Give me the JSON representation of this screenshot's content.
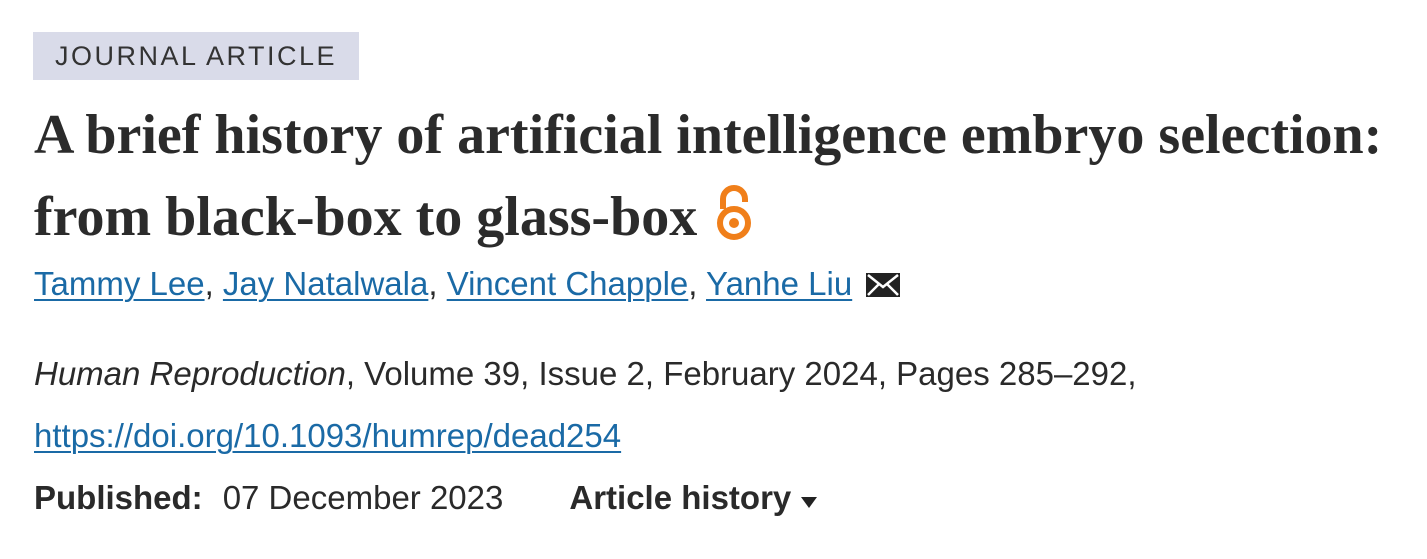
{
  "article_type": "JOURNAL ARTICLE",
  "title": "A brief history of artificial intelligence embryo selection: from black-box to glass-box",
  "authors": [
    "Tammy Lee",
    "Jay Natalwala",
    "Vincent Chapple",
    "Yanhe Liu"
  ],
  "author_separator": ",",
  "citation": {
    "journal": "Human Reproduction",
    "details": ", Volume 39, Issue 2, February 2024, Pages 285–292,",
    "doi": "https://doi.org/10.1093/humrep/dead254"
  },
  "published": {
    "label": "Published:",
    "date": "07 December 2023"
  },
  "article_history": "Article history"
}
